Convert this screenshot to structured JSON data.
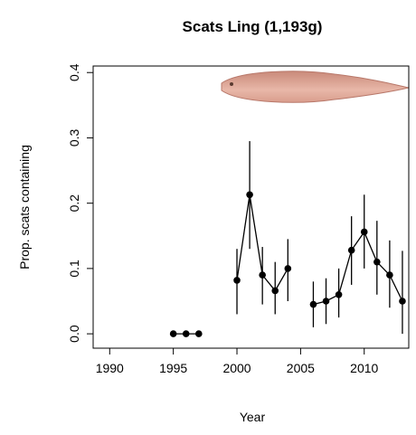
{
  "chart_data": {
    "type": "line",
    "title": "Scats Ling (1,193g)",
    "x_label": "Year",
    "y_label": "Prop. scats containing",
    "x": [
      1995,
      1996,
      1997,
      1998,
      1999,
      2000,
      2001,
      2002,
      2003,
      2004,
      2005,
      2006,
      2007,
      2008,
      2009,
      2010,
      2011,
      2012,
      2013
    ],
    "series": [
      {
        "color": "#000000",
        "values": [
          0,
          0,
          0,
          null,
          null,
          0.082,
          0.213,
          0.09,
          0.066,
          0.1,
          null,
          0.045,
          0.05,
          0.06,
          0.128,
          0.156,
          0.11,
          0.09,
          0.05
        ],
        "lower": [
          0,
          0,
          0,
          null,
          null,
          0.03,
          0.13,
          0.045,
          0.03,
          0.05,
          null,
          0.01,
          0.015,
          0.025,
          0.075,
          0.1,
          0.06,
          0.04,
          0
        ],
        "upper": [
          0,
          0,
          0,
          null,
          null,
          0.13,
          0.295,
          0.133,
          0.11,
          0.145,
          null,
          0.08,
          0.085,
          0.1,
          0.18,
          0.213,
          0.173,
          0.143,
          0.127
        ]
      }
    ],
    "xlim": [
      1988.7,
      2013.5
    ],
    "xticks": [
      1990,
      1995,
      2000,
      2005,
      2010
    ],
    "ylim": [
      -0.022,
      0.41
    ],
    "yticks": [
      {
        "value": 0,
        "label": "0.0"
      },
      0.1,
      0.2,
      0.3,
      0.4
    ]
  }
}
